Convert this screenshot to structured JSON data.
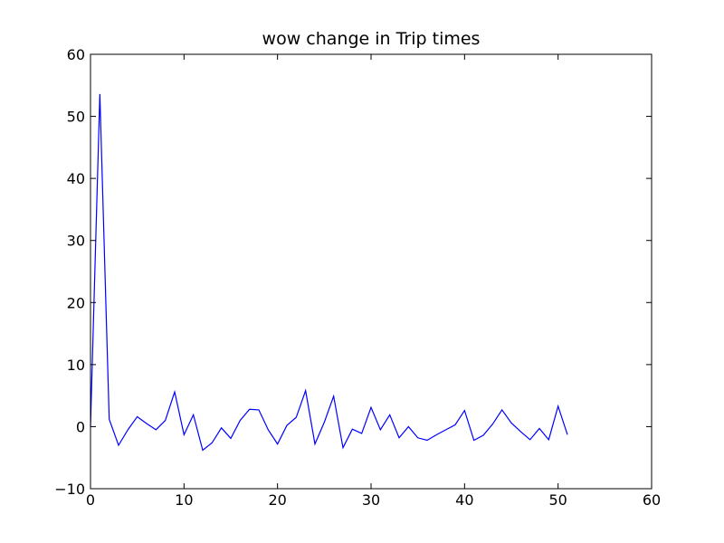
{
  "chart_data": {
    "type": "line",
    "title": "wow change in Trip times",
    "xlabel": "",
    "ylabel": "",
    "xlim": [
      0,
      60
    ],
    "ylim": [
      -10,
      60
    ],
    "x_ticks": [
      0,
      10,
      20,
      30,
      40,
      50,
      60
    ],
    "y_ticks": [
      -10,
      0,
      10,
      20,
      30,
      40,
      50,
      60
    ],
    "grid": false,
    "legend": "none",
    "series": [
      {
        "color": "#0000ff",
        "x": [
          0,
          1,
          2,
          3,
          4,
          5,
          6,
          7,
          8,
          9,
          10,
          11,
          12,
          13,
          14,
          15,
          16,
          17,
          18,
          19,
          20,
          21,
          22,
          23,
          24,
          25,
          26,
          27,
          28,
          29,
          30,
          31,
          32,
          33,
          34,
          35,
          36,
          37,
          38,
          39,
          40,
          41,
          42,
          43,
          44,
          45,
          46,
          47,
          48,
          49,
          50,
          51
        ],
        "y": [
          0,
          53.6,
          1.2,
          -3.0,
          -0.5,
          1.6,
          0.5,
          -0.5,
          1.0,
          5.6,
          -1.3,
          1.9,
          -3.8,
          -2.6,
          -0.2,
          -1.9,
          1.0,
          2.8,
          2.7,
          -0.5,
          -2.8,
          0.2,
          1.5,
          5.8,
          -2.8,
          0.7,
          4.9,
          -3.4,
          -0.4,
          -1.1,
          3.1,
          -0.5,
          1.9,
          -1.8,
          0.0,
          -1.8,
          -2.2,
          -1.3,
          -0.5,
          0.3,
          2.6,
          -2.2,
          -1.4,
          0.4,
          2.7,
          0.6,
          -0.8,
          -2.1,
          -0.3,
          -2.1,
          3.3,
          -1.3
        ]
      }
    ]
  }
}
